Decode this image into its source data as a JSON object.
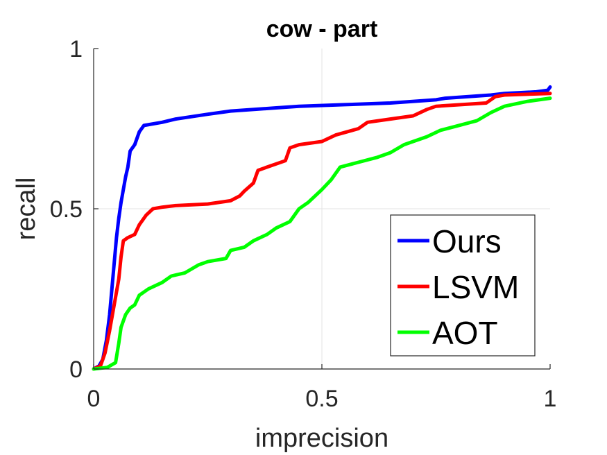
{
  "chart_data": {
    "type": "line",
    "title": "cow - part",
    "xlabel": "imprecision",
    "ylabel": "recall",
    "xlim": [
      0,
      1
    ],
    "ylim": [
      0,
      1
    ],
    "x_ticks": [
      0,
      0.5,
      1
    ],
    "x_tick_labels": [
      "0",
      "0.5",
      "1"
    ],
    "y_ticks": [
      0,
      0.5,
      1
    ],
    "y_tick_labels": [
      "0",
      "0.5",
      "1"
    ],
    "grid": true,
    "legend_position": "bottom-right",
    "series": [
      {
        "name": "Ours",
        "color": "#0000ff",
        "points": [
          [
            0,
            0
          ],
          [
            0.012,
            0.01
          ],
          [
            0.02,
            0.03
          ],
          [
            0.028,
            0.09
          ],
          [
            0.035,
            0.17
          ],
          [
            0.04,
            0.25
          ],
          [
            0.045,
            0.33
          ],
          [
            0.05,
            0.41
          ],
          [
            0.055,
            0.47
          ],
          [
            0.06,
            0.52
          ],
          [
            0.065,
            0.56
          ],
          [
            0.07,
            0.6
          ],
          [
            0.075,
            0.63
          ],
          [
            0.08,
            0.68
          ],
          [
            0.09,
            0.7
          ],
          [
            0.1,
            0.74
          ],
          [
            0.11,
            0.76
          ],
          [
            0.15,
            0.77
          ],
          [
            0.18,
            0.78
          ],
          [
            0.25,
            0.795
          ],
          [
            0.3,
            0.805
          ],
          [
            0.4,
            0.815
          ],
          [
            0.45,
            0.82
          ],
          [
            0.55,
            0.825
          ],
          [
            0.65,
            0.83
          ],
          [
            0.75,
            0.84
          ],
          [
            0.77,
            0.845
          ],
          [
            0.87,
            0.855
          ],
          [
            0.9,
            0.86
          ],
          [
            0.97,
            0.865
          ],
          [
            0.995,
            0.87
          ],
          [
            1,
            0.88
          ]
        ]
      },
      {
        "name": "LSVM",
        "color": "#ff0000",
        "points": [
          [
            0,
            0
          ],
          [
            0.015,
            0.01
          ],
          [
            0.025,
            0.05
          ],
          [
            0.035,
            0.12
          ],
          [
            0.045,
            0.2
          ],
          [
            0.055,
            0.28
          ],
          [
            0.06,
            0.35
          ],
          [
            0.065,
            0.4
          ],
          [
            0.075,
            0.41
          ],
          [
            0.09,
            0.42
          ],
          [
            0.1,
            0.45
          ],
          [
            0.115,
            0.48
          ],
          [
            0.13,
            0.5
          ],
          [
            0.15,
            0.505
          ],
          [
            0.18,
            0.51
          ],
          [
            0.25,
            0.515
          ],
          [
            0.3,
            0.525
          ],
          [
            0.32,
            0.54
          ],
          [
            0.33,
            0.555
          ],
          [
            0.35,
            0.58
          ],
          [
            0.36,
            0.62
          ],
          [
            0.38,
            0.63
          ],
          [
            0.42,
            0.65
          ],
          [
            0.43,
            0.69
          ],
          [
            0.45,
            0.7
          ],
          [
            0.5,
            0.71
          ],
          [
            0.53,
            0.73
          ],
          [
            0.58,
            0.75
          ],
          [
            0.6,
            0.77
          ],
          [
            0.65,
            0.78
          ],
          [
            0.7,
            0.79
          ],
          [
            0.73,
            0.81
          ],
          [
            0.75,
            0.82
          ],
          [
            0.86,
            0.83
          ],
          [
            0.88,
            0.85
          ],
          [
            0.9,
            0.855
          ],
          [
            1,
            0.86
          ]
        ]
      },
      {
        "name": "AOT",
        "color": "#00ff00",
        "points": [
          [
            0,
            0
          ],
          [
            0.03,
            0.005
          ],
          [
            0.048,
            0.02
          ],
          [
            0.055,
            0.08
          ],
          [
            0.06,
            0.13
          ],
          [
            0.07,
            0.17
          ],
          [
            0.08,
            0.19
          ],
          [
            0.09,
            0.2
          ],
          [
            0.1,
            0.23
          ],
          [
            0.12,
            0.25
          ],
          [
            0.15,
            0.27
          ],
          [
            0.17,
            0.29
          ],
          [
            0.2,
            0.3
          ],
          [
            0.23,
            0.325
          ],
          [
            0.25,
            0.335
          ],
          [
            0.29,
            0.345
          ],
          [
            0.3,
            0.37
          ],
          [
            0.33,
            0.38
          ],
          [
            0.35,
            0.4
          ],
          [
            0.38,
            0.42
          ],
          [
            0.4,
            0.44
          ],
          [
            0.43,
            0.46
          ],
          [
            0.45,
            0.5
          ],
          [
            0.47,
            0.52
          ],
          [
            0.5,
            0.56
          ],
          [
            0.52,
            0.59
          ],
          [
            0.54,
            0.63
          ],
          [
            0.58,
            0.645
          ],
          [
            0.62,
            0.66
          ],
          [
            0.65,
            0.675
          ],
          [
            0.68,
            0.7
          ],
          [
            0.7,
            0.71
          ],
          [
            0.73,
            0.725
          ],
          [
            0.76,
            0.745
          ],
          [
            0.8,
            0.76
          ],
          [
            0.84,
            0.775
          ],
          [
            0.87,
            0.8
          ],
          [
            0.9,
            0.82
          ],
          [
            0.95,
            0.835
          ],
          [
            1,
            0.845
          ]
        ]
      }
    ]
  }
}
